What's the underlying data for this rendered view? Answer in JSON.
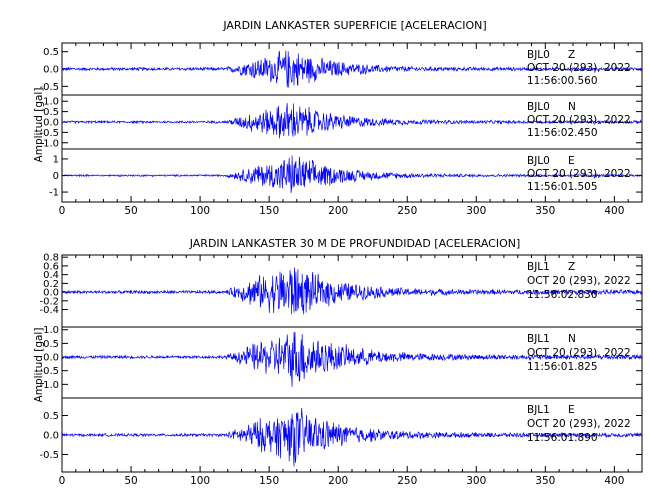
{
  "chart_data": [
    {
      "type": "line",
      "title": "JARDIN LANKASTER SUPERFICIE [ACELERACION]",
      "ylabel": "Amplitud [gal]",
      "xlim": [
        0,
        420
      ],
      "xticks": [
        "0",
        "50",
        "100",
        "150",
        "200",
        "250",
        "300",
        "350",
        "400"
      ],
      "series": [
        {
          "station": "BJL0",
          "component": "Z",
          "date": "OCT 20 (293), 2022",
          "time": "11:56:00.560",
          "ylim": [
            -0.75,
            0.75
          ],
          "yticks": [
            "-0.5",
            "0.0",
            "0.5"
          ],
          "envelope": {
            "noise": 0.05,
            "onset": 118,
            "peak": 165,
            "peak_amp": 0.7,
            "coda_amp": 0.05,
            "end": 420
          }
        },
        {
          "station": "BJL0",
          "component": "N",
          "date": "OCT 20 (293), 2022",
          "time": "11:56:02.450",
          "ylim": [
            -1.3,
            1.3
          ],
          "yticks": [
            "-1.0",
            "-0.5",
            "0.0",
            "0.5",
            "1.0"
          ],
          "envelope": {
            "noise": 0.06,
            "onset": 118,
            "peak": 165,
            "peak_amp": 1.2,
            "coda_amp": 0.08,
            "end": 420
          }
        },
        {
          "station": "BJL0",
          "component": "E",
          "date": "OCT 20 (293), 2022",
          "time": "11:56:01.505",
          "ylim": [
            -1.6,
            1.6
          ],
          "yticks": [
            "-1",
            "0",
            "1"
          ],
          "envelope": {
            "noise": 0.06,
            "onset": 118,
            "peak": 168,
            "peak_amp": 1.5,
            "coda_amp": 0.08,
            "end": 420
          }
        }
      ]
    },
    {
      "type": "line",
      "title": "JARDIN LANKASTER 30 M DE PROFUNDIDAD [ACELERACION]",
      "ylabel": "Amplitud [gal]",
      "xlim": [
        0,
        420
      ],
      "xticks": [
        "0",
        "50",
        "100",
        "150",
        "200",
        "250",
        "300",
        "350",
        "400"
      ],
      "series": [
        {
          "station": "BJL1",
          "component": "Z",
          "date": "OCT 20 (293), 2022",
          "time": "11:56:02.830",
          "ylim": [
            -0.8,
            0.85
          ],
          "yticks": [
            "-0.4",
            "-0.2",
            "0.0",
            "0.2",
            "0.4",
            "0.6",
            "0.8"
          ],
          "envelope": {
            "noise": 0.04,
            "onset": 118,
            "peak": 165,
            "peak_amp": 0.8,
            "coda_amp": 0.06,
            "end": 420
          }
        },
        {
          "station": "BJL1",
          "component": "N",
          "date": "OCT 20 (293), 2022",
          "time": "11:56:01.825",
          "ylim": [
            -1.5,
            1.1
          ],
          "yticks": [
            "-1.0",
            "-0.5",
            "0.0",
            "0.5",
            "1.0"
          ],
          "envelope": {
            "noise": 0.06,
            "onset": 118,
            "peak": 170,
            "peak_amp": 1.3,
            "coda_amp": 0.1,
            "end": 420
          }
        },
        {
          "station": "BJL1",
          "component": "E",
          "date": "OCT 20 (293), 2022",
          "time": "11:56:01.890",
          "ylim": [
            -0.95,
            0.95
          ],
          "yticks": [
            "-0.5",
            "0.0",
            "0.5"
          ],
          "envelope": {
            "noise": 0.04,
            "onset": 118,
            "peak": 168,
            "peak_amp": 0.9,
            "coda_amp": 0.06,
            "end": 420
          }
        }
      ]
    }
  ],
  "colors": {
    "trace": "#0000ff",
    "axes": "#000000",
    "background": "#ffffff"
  }
}
